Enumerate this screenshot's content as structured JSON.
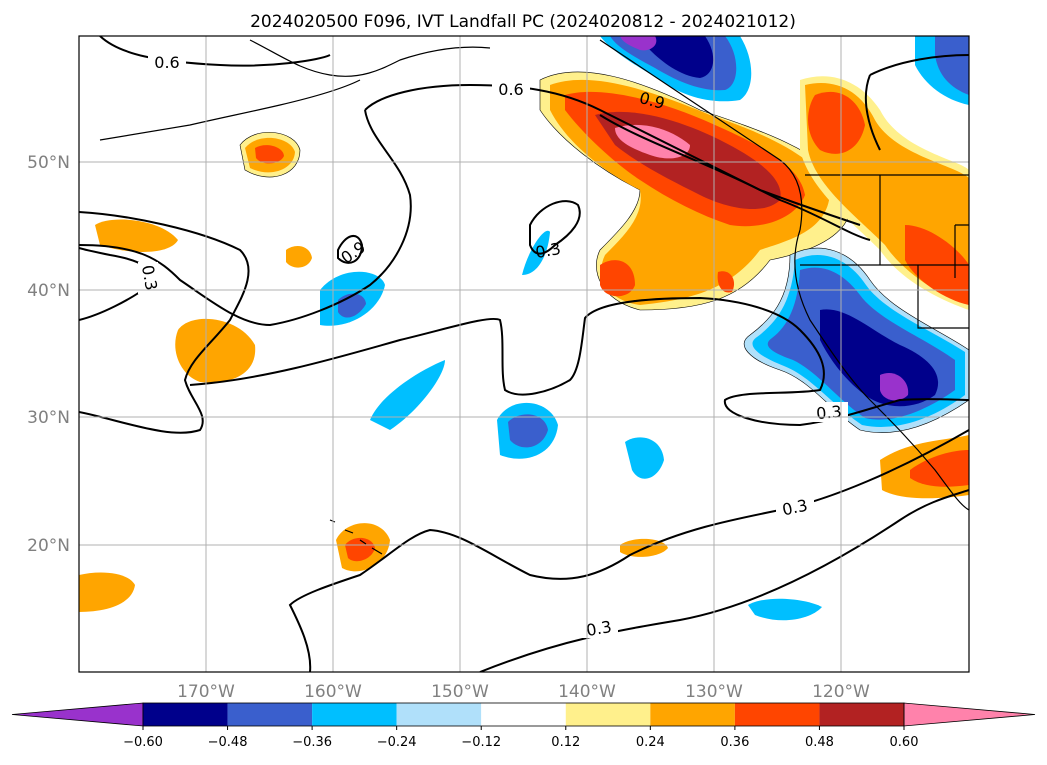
{
  "title": "2024020500 F096, IVT Landfall PC (2024020812 - 2024021012)",
  "map": {
    "lon_ticks": [
      "170°W",
      "160°W",
      "150°W",
      "140°W",
      "130°W",
      "120°W"
    ],
    "lat_ticks": [
      "50°N",
      "40°N",
      "30°N",
      "20°N"
    ],
    "contour_labels": [
      "0.6",
      "0.6",
      "0.9",
      "0.9",
      "0.3",
      "0.3",
      "0.3",
      "0.3",
      "0.3"
    ]
  },
  "colorbar": {
    "ticks": [
      "−0.60",
      "−0.48",
      "−0.36",
      "−0.24",
      "−0.12",
      "0.12",
      "0.24",
      "0.36",
      "0.48",
      "0.60"
    ],
    "colors": [
      "#9932cc",
      "#00008b",
      "#3a5fcd",
      "#00bfff",
      "#b0e0fa",
      "#ffffff",
      "#fff08c",
      "#ffa500",
      "#ff4500",
      "#b22222",
      "#ff82ab"
    ],
    "levels": [
      -0.6,
      -0.48,
      -0.36,
      -0.24,
      -0.12,
      0.12,
      0.24,
      0.36,
      0.48,
      0.6
    ]
  }
}
